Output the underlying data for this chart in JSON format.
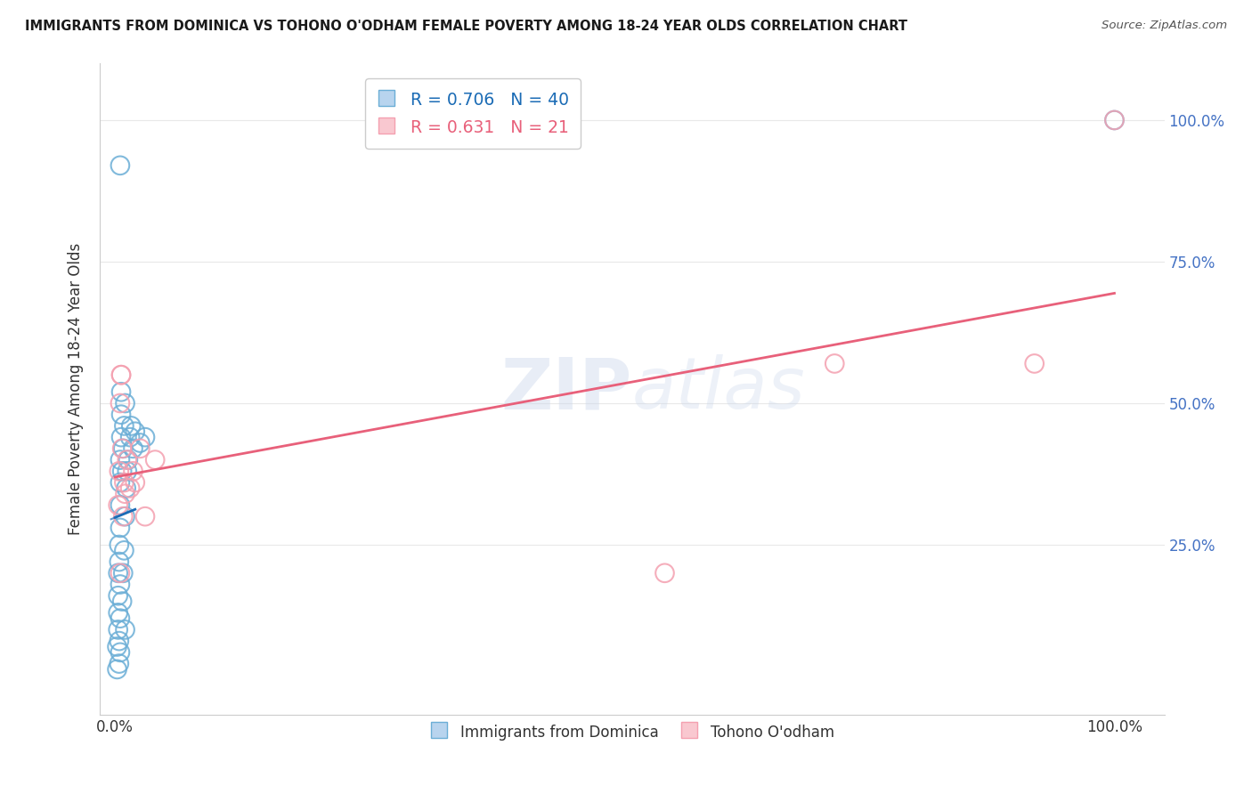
{
  "title": "IMMIGRANTS FROM DOMINICA VS TOHONO O'ODHAM FEMALE POVERTY AMONG 18-24 YEAR OLDS CORRELATION CHART",
  "source": "Source: ZipAtlas.com",
  "ylabel": "Female Poverty Among 18-24 Year Olds",
  "blue_R": 0.706,
  "blue_N": 40,
  "pink_R": 0.631,
  "pink_N": 21,
  "blue_label": "Immigrants from Dominica",
  "pink_label": "Tohono O'odham",
  "watermark_text": "ZIPatlas",
  "blue_color": "#6baed6",
  "blue_line_color": "#1a6bb5",
  "pink_color": "#f4a0b0",
  "pink_line_color": "#e8607a",
  "right_tick_color": "#4472c4",
  "background_color": "#ffffff",
  "grid_color": "#e8e8e8",
  "blue_x": [
    0.002,
    0.002,
    0.003,
    0.003,
    0.003,
    0.003,
    0.004,
    0.004,
    0.004,
    0.004,
    0.005,
    0.005,
    0.005,
    0.005,
    0.005,
    0.005,
    0.005,
    0.006,
    0.006,
    0.006,
    0.007,
    0.007,
    0.008,
    0.008,
    0.009,
    0.009,
    0.01,
    0.01,
    0.01,
    0.011,
    0.012,
    0.013,
    0.015,
    0.016,
    0.018,
    0.02,
    0.025,
    0.03,
    0.005,
    1.0
  ],
  "blue_y": [
    0.03,
    0.07,
    0.1,
    0.13,
    0.16,
    0.2,
    0.04,
    0.08,
    0.22,
    0.25,
    0.06,
    0.12,
    0.18,
    0.28,
    0.32,
    0.36,
    0.4,
    0.44,
    0.48,
    0.52,
    0.15,
    0.38,
    0.2,
    0.42,
    0.24,
    0.46,
    0.1,
    0.3,
    0.5,
    0.35,
    0.38,
    0.4,
    0.44,
    0.46,
    0.42,
    0.45,
    0.43,
    0.44,
    0.92,
    1.0
  ],
  "pink_x": [
    0.003,
    0.004,
    0.005,
    0.005,
    0.006,
    0.007,
    0.008,
    0.009,
    0.01,
    0.012,
    0.015,
    0.018,
    0.02,
    0.025,
    0.03,
    0.04,
    0.55,
    0.72,
    0.92,
    1.0,
    0.006
  ],
  "pink_y": [
    0.32,
    0.38,
    0.2,
    0.5,
    0.55,
    0.42,
    0.3,
    0.36,
    0.34,
    0.4,
    0.35,
    0.38,
    0.36,
    0.42,
    0.3,
    0.4,
    0.2,
    0.57,
    0.57,
    1.0,
    0.55
  ],
  "xlim_min": -0.015,
  "xlim_max": 1.05,
  "ylim_min": -0.05,
  "ylim_max": 1.1
}
